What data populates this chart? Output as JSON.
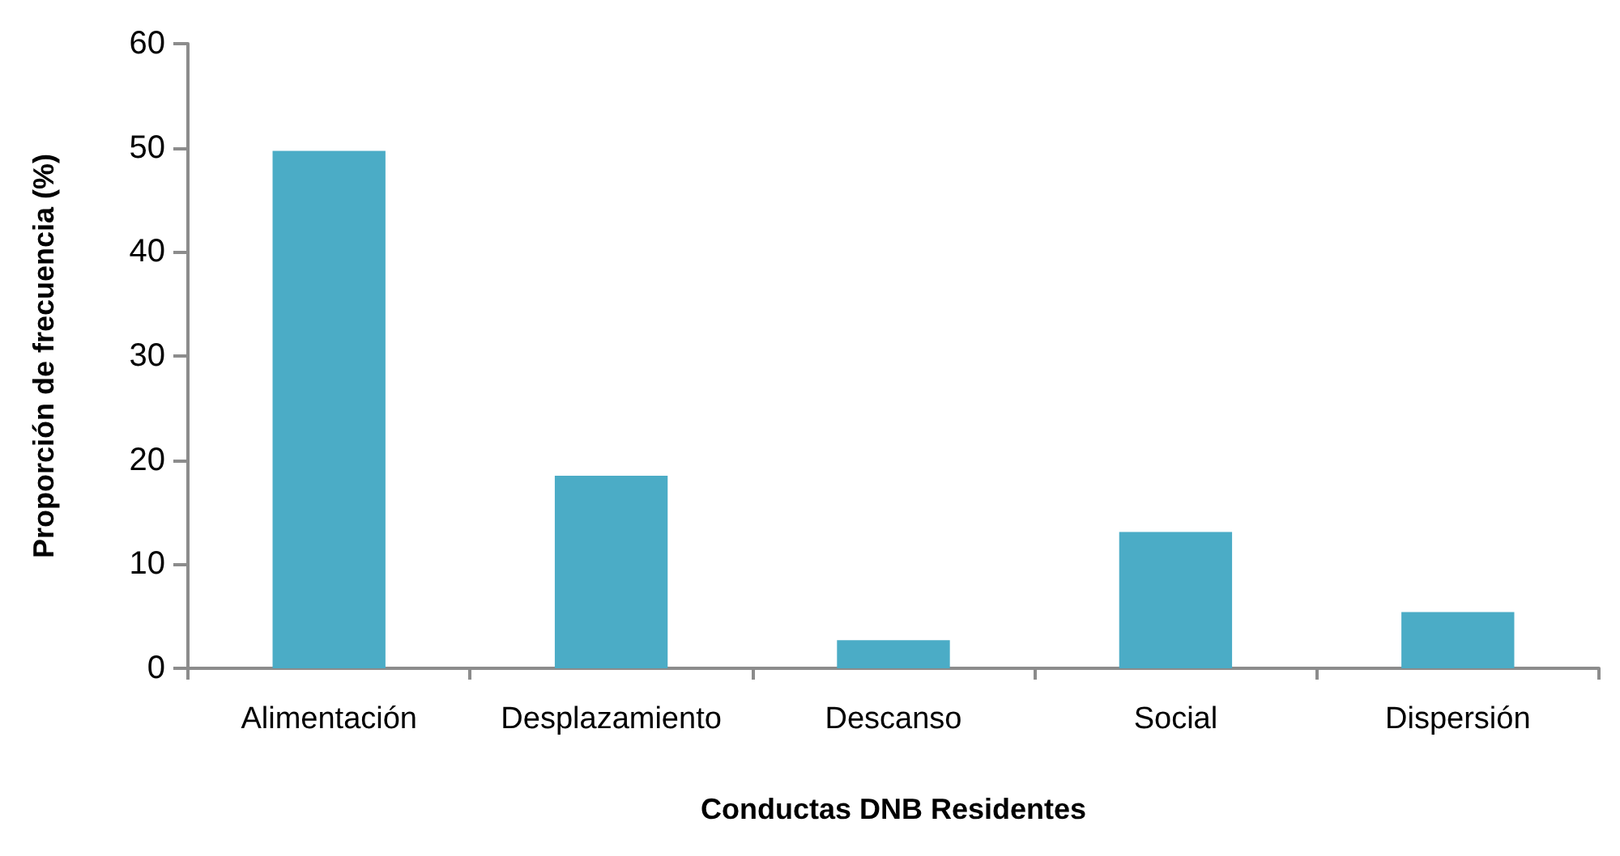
{
  "chart_data": {
    "type": "bar",
    "xlabel": "Conductas DNB Residentes",
    "ylabel": "Proporción de frecuencia (%)",
    "categories": [
      "Alimentación",
      "Desplazamiento",
      "Descanso",
      "Social",
      "Dispersión"
    ],
    "values": [
      49.7,
      18.5,
      2.7,
      13.1,
      5.4
    ],
    "color": "#4bacc6",
    "ylim": [
      0,
      60
    ],
    "yticks": [
      0,
      10,
      20,
      30,
      40,
      50,
      60
    ],
    "grid": false
  }
}
